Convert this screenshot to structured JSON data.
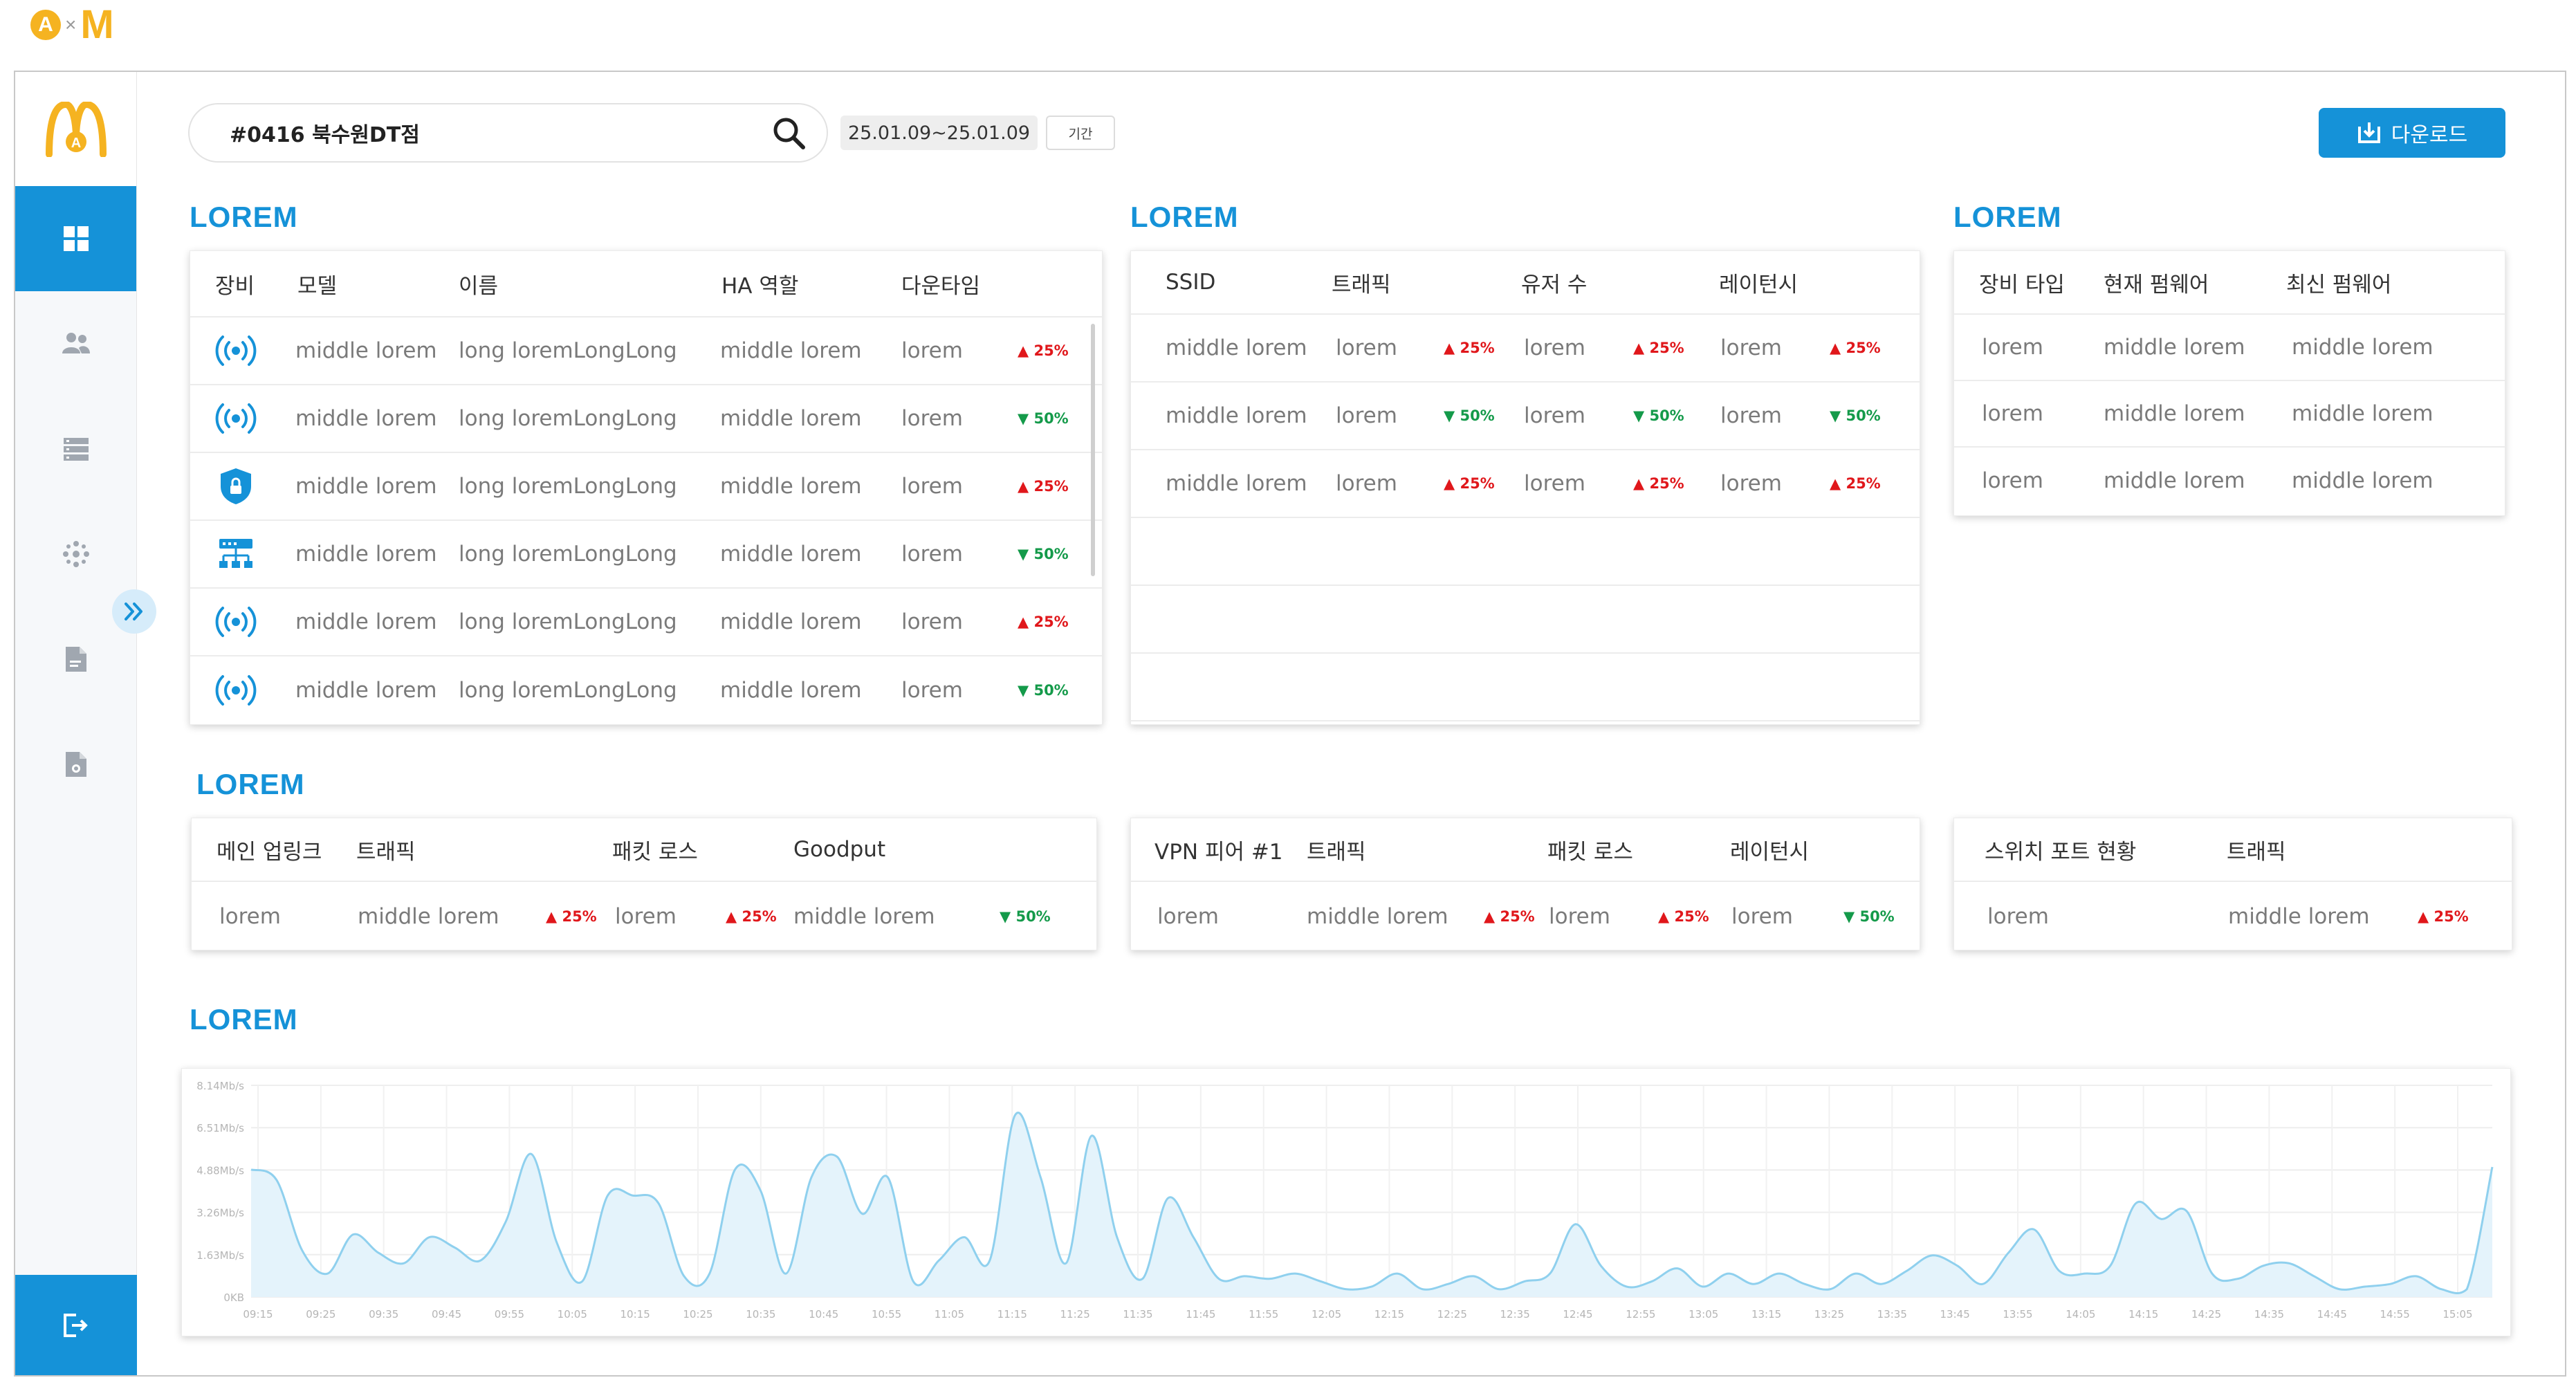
{
  "brand": {
    "a": "A",
    "x": "×",
    "m": "M"
  },
  "search": {
    "value": "#0416 북수원DT점"
  },
  "date_range": "25.01.09~25.01.09",
  "period_label": "기간",
  "download_label": "다운로드",
  "icons": {
    "nav": [
      "dashboard-icon",
      "users-icon",
      "server-icon",
      "network-icon",
      "document-icon",
      "settings-document-icon"
    ],
    "logout": "logout-icon",
    "expand": "double-chevron-right-icon",
    "search": "search-icon"
  },
  "colors": {
    "accent": "#1592d8",
    "up": "#e0171b",
    "down": "#149a4a",
    "chart_line": "#8fd0ee",
    "chart_fill": "#e4f3fb"
  },
  "devices": {
    "title": "LOREM",
    "headers": [
      "장비",
      "모델",
      "이름",
      "HA 역할",
      "다운타임"
    ],
    "rows": [
      {
        "icon": "wireless-ap-icon",
        "model": "middle lorem",
        "name": "long loremLongLong",
        "ha": "middle lorem",
        "downtime": "lorem",
        "pct": "▲ 25%",
        "dir": "up"
      },
      {
        "icon": "wireless-ap-icon",
        "model": "middle lorem",
        "name": "long loremLongLong",
        "ha": "middle lorem",
        "downtime": "lorem",
        "pct": "▼ 50%",
        "dir": "down"
      },
      {
        "icon": "security-shield-icon",
        "model": "middle lorem",
        "name": "long loremLongLong",
        "ha": "middle lorem",
        "downtime": "lorem",
        "pct": "▲ 25%",
        "dir": "up"
      },
      {
        "icon": "switch-icon",
        "model": "middle lorem",
        "name": "long loremLongLong",
        "ha": "middle lorem",
        "downtime": "lorem",
        "pct": "▼ 50%",
        "dir": "down"
      },
      {
        "icon": "wireless-ap-icon",
        "model": "middle lorem",
        "name": "long loremLongLong",
        "ha": "middle lorem",
        "downtime": "lorem",
        "pct": "▲ 25%",
        "dir": "up"
      },
      {
        "icon": "wireless-ap-icon",
        "model": "middle lorem",
        "name": "long loremLongLong",
        "ha": "middle lorem",
        "downtime": "lorem",
        "pct": "▼ 50%",
        "dir": "down"
      }
    ]
  },
  "ssid": {
    "title": "LOREM",
    "headers": [
      "SSID",
      "트래픽",
      "유저 수",
      "레이턴시"
    ],
    "rows": [
      {
        "ssid": "middle lorem",
        "traffic": "lorem",
        "traffic_pct": "▲ 25%",
        "traffic_dir": "up",
        "users": "lorem",
        "users_pct": "▲ 25%",
        "users_dir": "up",
        "latency": "lorem",
        "latency_pct": "▲ 25%",
        "latency_dir": "up"
      },
      {
        "ssid": "middle lorem",
        "traffic": "lorem",
        "traffic_pct": "▼ 50%",
        "traffic_dir": "down",
        "users": "lorem",
        "users_pct": "▼ 50%",
        "users_dir": "down",
        "latency": "lorem",
        "latency_pct": "▼ 50%",
        "latency_dir": "down"
      },
      {
        "ssid": "middle lorem",
        "traffic": "lorem",
        "traffic_pct": "▲ 25%",
        "traffic_dir": "up",
        "users": "lorem",
        "users_pct": "▲ 25%",
        "users_dir": "up",
        "latency": "lorem",
        "latency_pct": "▲ 25%",
        "latency_dir": "up"
      }
    ]
  },
  "firmware": {
    "title": "LOREM",
    "headers": [
      "장비 타입",
      "현재 펌웨어",
      "최신 펌웨어"
    ],
    "rows": [
      {
        "type": "lorem",
        "current": "middle lorem",
        "latest": "middle lorem"
      },
      {
        "type": "lorem",
        "current": "middle lorem",
        "latest": "middle lorem"
      },
      {
        "type": "lorem",
        "current": "middle lorem",
        "latest": "middle lorem"
      }
    ]
  },
  "uplink_title": "LOREM",
  "uplink": {
    "headers": [
      "메인 업링크",
      "트래픽",
      "패킷 로스",
      "Goodput"
    ],
    "row": {
      "main": "lorem",
      "traffic": "middle lorem",
      "traffic_pct": "▲ 25%",
      "traffic_dir": "up",
      "loss": "lorem",
      "loss_pct": "▲ 25%",
      "loss_dir": "up",
      "goodput": "middle lorem",
      "goodput_pct": "▼ 50%",
      "goodput_dir": "down"
    }
  },
  "vpn": {
    "headers": [
      "VPN 피어 #1",
      "트래픽",
      "패킷 로스",
      "레이턴시"
    ],
    "row": {
      "peer": "lorem",
      "traffic": "middle lorem",
      "traffic_pct": "▲ 25%",
      "traffic_dir": "up",
      "loss": "lorem",
      "loss_pct": "▲ 25%",
      "loss_dir": "up",
      "latency": "lorem",
      "latency_pct": "▼ 50%",
      "latency_dir": "down"
    }
  },
  "switch_port": {
    "headers": [
      "스위치 포트 현황",
      "트래픽"
    ],
    "row": {
      "status": "lorem",
      "traffic": "middle lorem",
      "traffic_pct": "▲ 25%",
      "traffic_dir": "up"
    }
  },
  "chart_section_title": "LOREM",
  "chart_data": {
    "type": "area",
    "title": "",
    "xlabel": "",
    "ylabel": "",
    "y_ticks": [
      "0KB",
      "1.63Mb/s",
      "3.26Mb/s",
      "4.88Mb/s",
      "6.51Mb/s",
      "8.14Mb/s"
    ],
    "ylim": [
      0,
      8.14
    ],
    "x_ticks": [
      "09:15",
      "09:25",
      "09:35",
      "09:45",
      "09:55",
      "10:05",
      "10:15",
      "10:25",
      "10:35",
      "10:45",
      "10:55",
      "11:05",
      "11:15",
      "11:25",
      "11:35",
      "11:45",
      "11:55",
      "12:05",
      "12:15",
      "12:25",
      "12:35",
      "12:45",
      "12:55",
      "13:05",
      "13:15",
      "13:25",
      "13:35",
      "13:45",
      "13:55",
      "14:05",
      "14:15",
      "14:25",
      "14:35",
      "14:45",
      "14:55",
      "15:05"
    ],
    "grid": true,
    "series": [
      {
        "values": [
          4.9,
          4.5,
          1.8,
          0.9,
          2.4,
          1.7,
          1.3,
          2.3,
          1.9,
          1.4,
          2.9,
          5.5,
          2.1,
          0.6,
          3.9,
          3.9,
          3.6,
          0.8,
          0.9,
          4.9,
          4.1,
          0.9,
          4.6,
          5.4,
          3.2,
          4.6,
          0.6,
          1.4,
          2.3,
          1.4,
          7.0,
          4.6,
          1.3,
          6.2,
          2.3,
          0.7,
          3.8,
          2.3,
          0.7,
          0.8,
          0.7,
          0.9,
          0.6,
          0.3,
          0.4,
          0.9,
          0.3,
          0.5,
          0.8,
          0.3,
          0.6,
          0.9,
          2.8,
          1.2,
          0.4,
          0.6,
          1.1,
          0.4,
          0.9,
          0.5,
          0.9,
          0.5,
          0.3,
          0.9,
          0.5,
          1.0,
          1.6,
          1.2,
          0.5,
          1.7,
          2.6,
          1.0,
          0.9,
          1.2,
          3.6,
          3.0,
          3.3,
          0.9,
          0.7,
          1.2,
          1.3,
          0.8,
          0.3,
          0.4,
          0.5,
          0.8,
          0.3,
          0.3,
          5.0
        ]
      }
    ]
  }
}
